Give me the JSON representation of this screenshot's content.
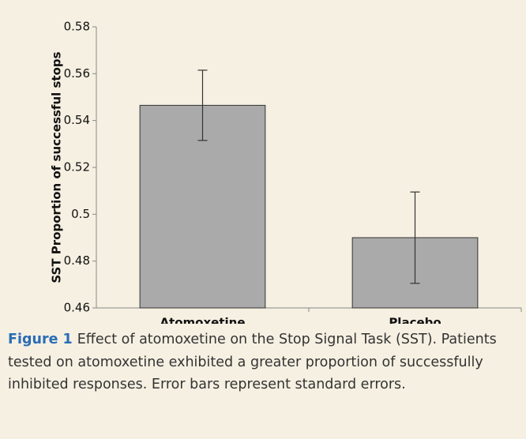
{
  "chart_data": {
    "type": "bar",
    "ylabel": "SST Proportion of successful stops",
    "categories": [
      "Atomoxetine",
      "Placebo"
    ],
    "values": [
      0.5465,
      0.49
    ],
    "errors": [
      0.015,
      0.0195
    ],
    "color": "#aaaaaa",
    "ylim": [
      0.46,
      0.58
    ],
    "yticks": [
      0.46,
      0.48,
      0.5,
      0.52,
      0.54,
      0.56,
      0.58
    ],
    "grid": false
  },
  "caption": {
    "label": "Figure 1",
    "text": "Effect of atomoxetine on the Stop Signal Task (SST). Patients tested on atomoxetine exhibited a greater proportion of successfully inhibited responses. Error bars represent standard errors."
  }
}
